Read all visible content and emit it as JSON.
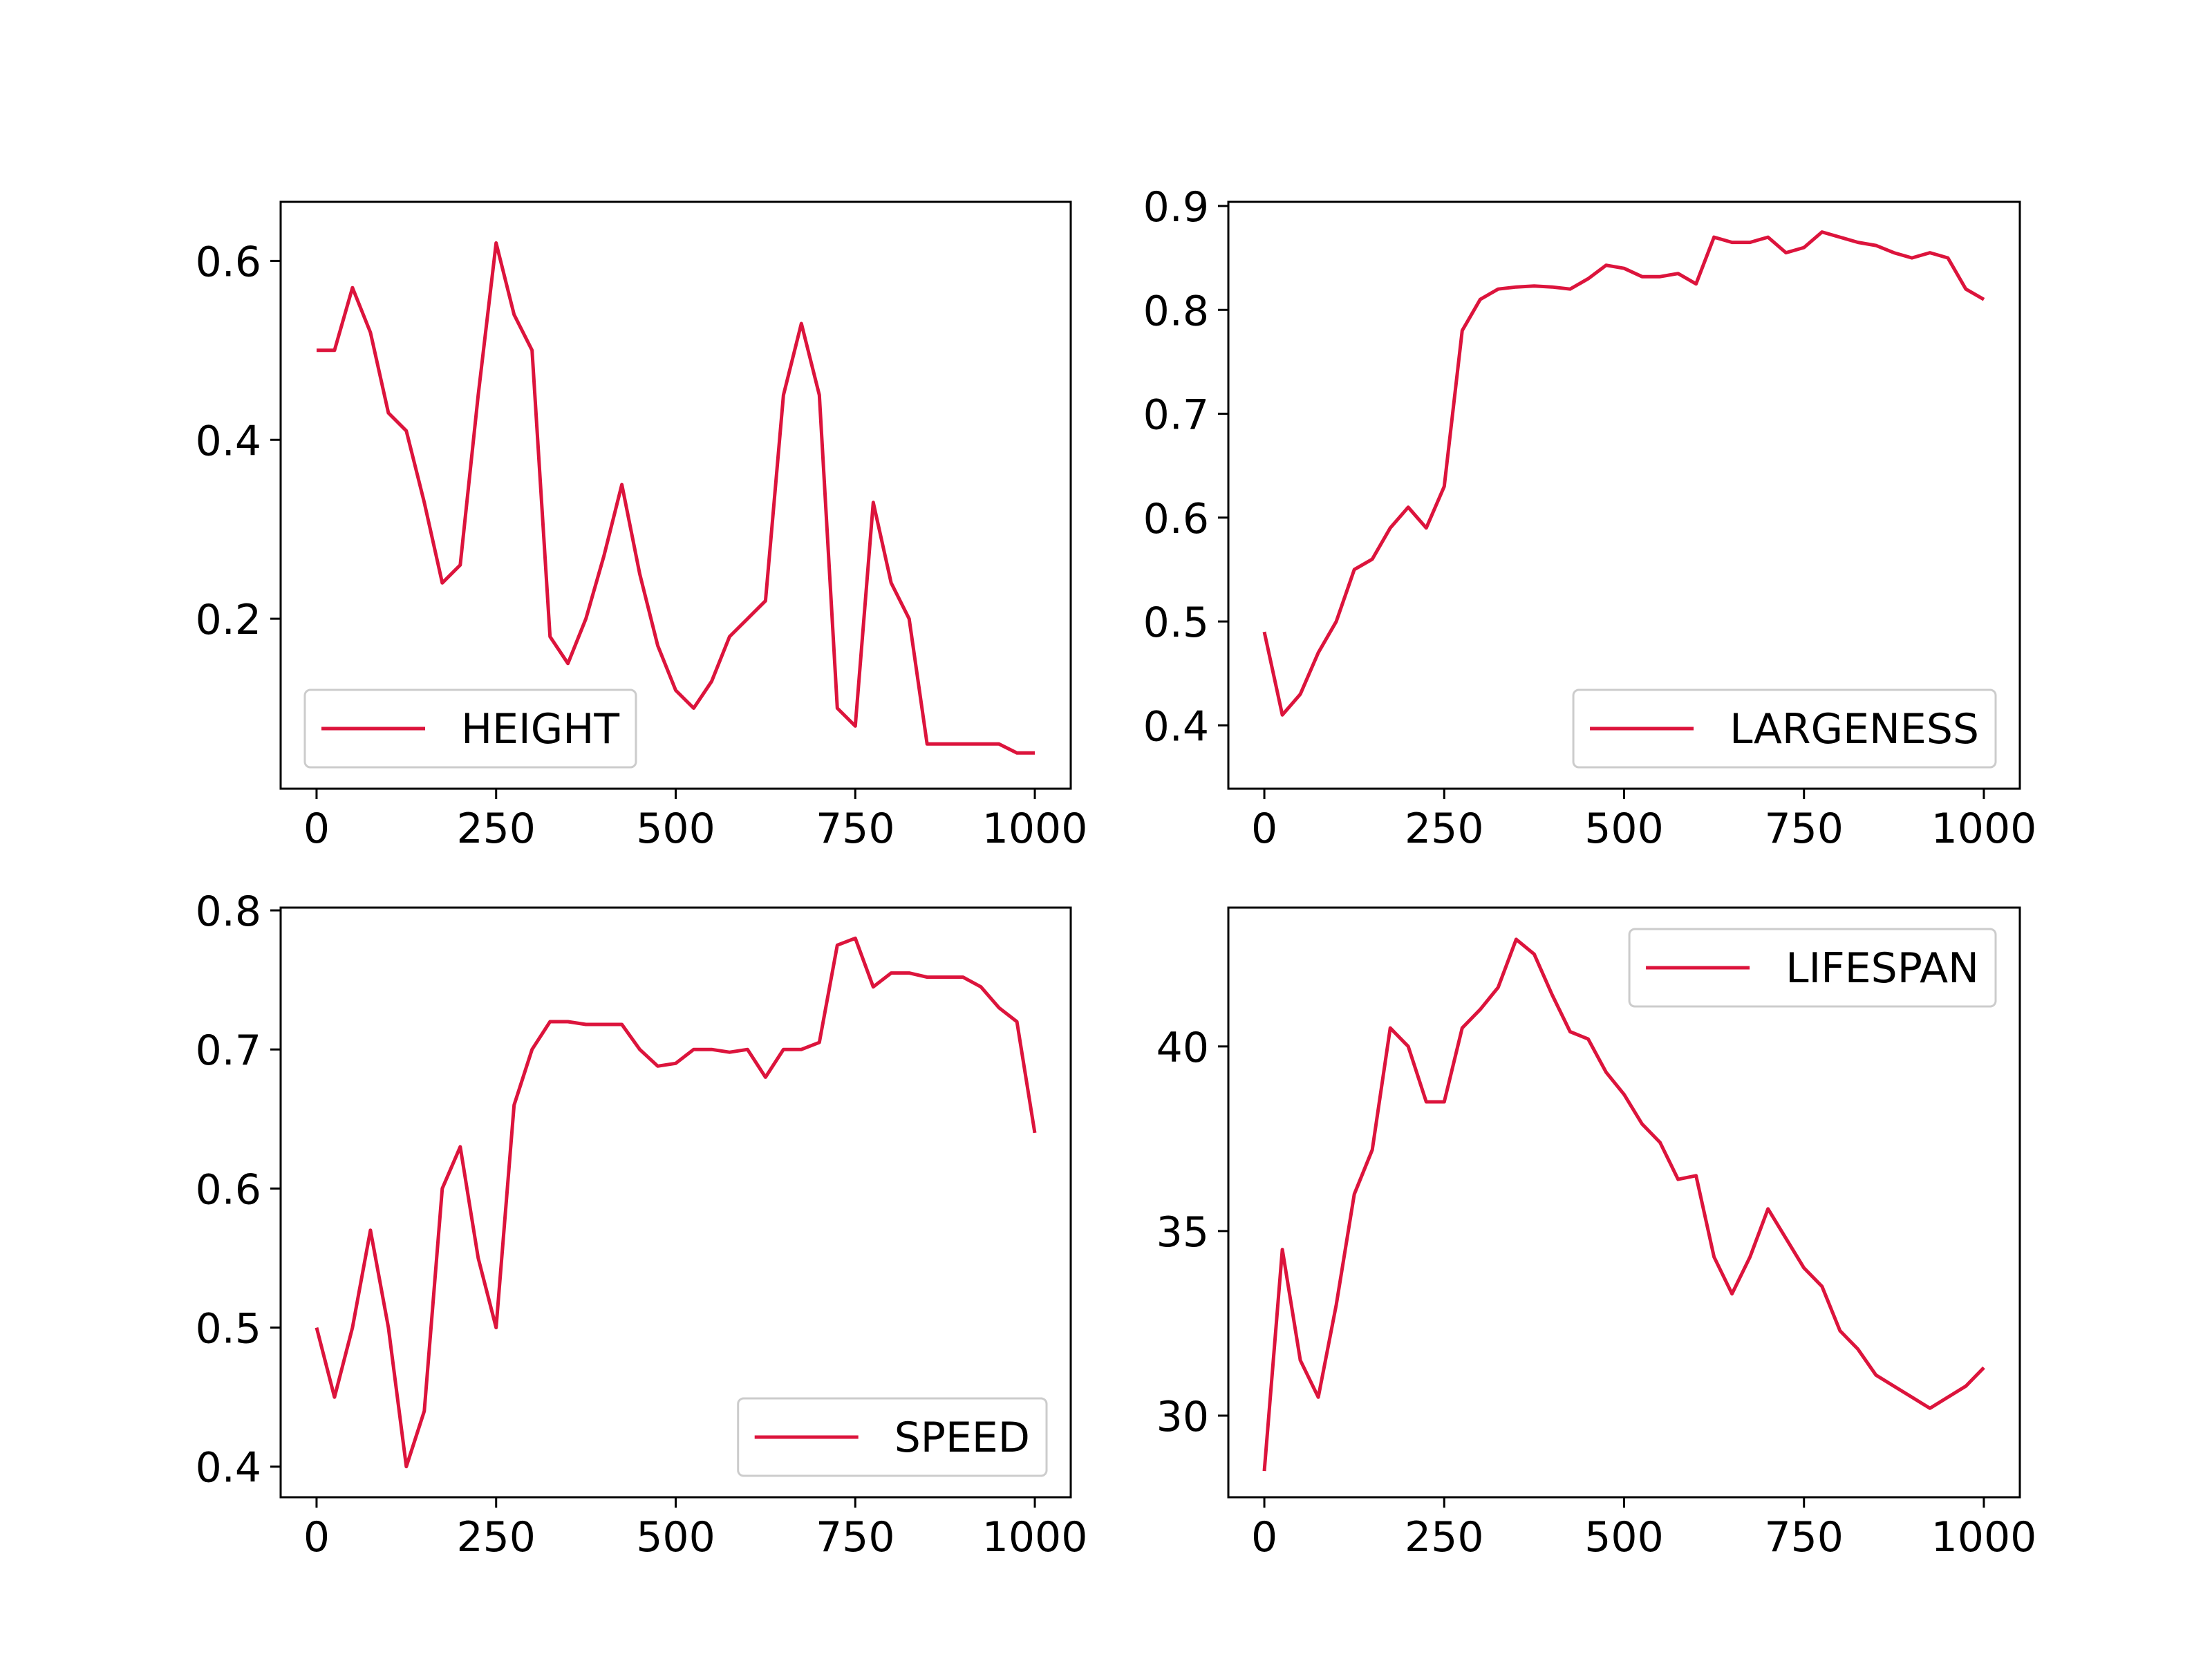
{
  "chart_data": [
    {
      "type": "line",
      "legend": "lower left",
      "grid": false,
      "x": [
        0,
        25,
        50,
        75,
        100,
        125,
        150,
        175,
        200,
        225,
        250,
        275,
        300,
        325,
        350,
        375,
        400,
        425,
        450,
        475,
        500,
        525,
        550,
        575,
        600,
        625,
        650,
        675,
        700,
        725,
        750,
        775,
        800,
        825,
        850,
        875,
        900,
        925,
        950,
        975,
        1000
      ],
      "series": [
        {
          "name": "HEIGHT",
          "color": "#dc143c",
          "values": [
            0.5,
            0.5,
            0.57,
            0.52,
            0.43,
            0.41,
            0.33,
            0.24,
            0.26,
            0.45,
            0.62,
            0.54,
            0.5,
            0.18,
            0.15,
            0.2,
            0.27,
            0.35,
            0.25,
            0.17,
            0.12,
            0.1,
            0.13,
            0.18,
            0.2,
            0.22,
            0.45,
            0.53,
            0.45,
            0.1,
            0.08,
            0.33,
            0.24,
            0.2,
            0.06,
            0.06,
            0.06,
            0.06,
            0.06,
            0.05,
            0.05
          ]
        }
      ],
      "xlim": [
        -50,
        1050
      ],
      "xticks": [
        0,
        250,
        500,
        750,
        1000
      ],
      "ylim": [
        0.01,
        0.666
      ],
      "yticks": [
        0.2,
        0.4,
        0.6
      ]
    },
    {
      "type": "line",
      "legend": "lower right",
      "grid": false,
      "x": [
        0,
        25,
        50,
        75,
        100,
        125,
        150,
        175,
        200,
        225,
        250,
        275,
        300,
        325,
        350,
        375,
        400,
        425,
        450,
        475,
        500,
        525,
        550,
        575,
        600,
        625,
        650,
        675,
        700,
        725,
        750,
        775,
        800,
        825,
        850,
        875,
        900,
        925,
        950,
        975,
        1000
      ],
      "series": [
        {
          "name": "LARGENESS",
          "color": "#dc143c",
          "values": [
            0.49,
            0.41,
            0.43,
            0.47,
            0.5,
            0.55,
            0.56,
            0.59,
            0.61,
            0.59,
            0.63,
            0.78,
            0.81,
            0.82,
            0.822,
            0.823,
            0.822,
            0.82,
            0.83,
            0.843,
            0.84,
            0.832,
            0.832,
            0.835,
            0.825,
            0.87,
            0.865,
            0.865,
            0.87,
            0.855,
            0.86,
            0.875,
            0.87,
            0.865,
            0.862,
            0.855,
            0.85,
            0.855,
            0.85,
            0.82,
            0.81
          ]
        }
      ],
      "xlim": [
        -50,
        1050
      ],
      "xticks": [
        0,
        250,
        500,
        750,
        1000
      ],
      "ylim": [
        0.339,
        0.904
      ],
      "yticks": [
        0.4,
        0.5,
        0.6,
        0.7,
        0.8,
        0.9
      ]
    },
    {
      "type": "line",
      "legend": "lower right",
      "grid": false,
      "x": [
        0,
        25,
        50,
        75,
        100,
        125,
        150,
        175,
        200,
        225,
        250,
        275,
        300,
        325,
        350,
        375,
        400,
        425,
        450,
        475,
        500,
        525,
        550,
        575,
        600,
        625,
        650,
        675,
        700,
        725,
        750,
        775,
        800,
        825,
        850,
        875,
        900,
        925,
        950,
        975,
        1000
      ],
      "series": [
        {
          "name": "SPEED",
          "color": "#dc143c",
          "values": [
            0.5,
            0.45,
            0.5,
            0.57,
            0.5,
            0.4,
            0.44,
            0.6,
            0.63,
            0.55,
            0.5,
            0.66,
            0.7,
            0.72,
            0.72,
            0.718,
            0.718,
            0.718,
            0.7,
            0.688,
            0.69,
            0.7,
            0.7,
            0.698,
            0.7,
            0.68,
            0.7,
            0.7,
            0.705,
            0.775,
            0.78,
            0.745,
            0.755,
            0.755,
            0.752,
            0.752,
            0.752,
            0.745,
            0.73,
            0.72,
            0.64
          ]
        }
      ],
      "xlim": [
        -50,
        1050
      ],
      "xticks": [
        0,
        250,
        500,
        750,
        1000
      ],
      "ylim": [
        0.378,
        0.802
      ],
      "yticks": [
        0.4,
        0.5,
        0.6,
        0.7,
        0.8
      ]
    },
    {
      "type": "line",
      "legend": "upper right",
      "grid": false,
      "x": [
        0,
        25,
        50,
        75,
        100,
        125,
        150,
        175,
        200,
        225,
        250,
        275,
        300,
        325,
        350,
        375,
        400,
        425,
        450,
        475,
        500,
        525,
        550,
        575,
        600,
        625,
        650,
        675,
        700,
        725,
        750,
        775,
        800,
        825,
        850,
        875,
        900,
        925,
        950,
        975,
        1000
      ],
      "series": [
        {
          "name": "LIFESPAN",
          "color": "#dc143c",
          "values": [
            28.5,
            34.5,
            31.5,
            30.5,
            33,
            36,
            37.2,
            40.5,
            40,
            38.5,
            38.5,
            40.5,
            41,
            41.6,
            42.9,
            42.5,
            41.4,
            40.4,
            40.2,
            39.3,
            38.7,
            37.9,
            37.4,
            36.4,
            36.5,
            34.3,
            33.3,
            34.3,
            35.6,
            34.8,
            34,
            33.5,
            32.3,
            31.8,
            31.1,
            30.8,
            30.5,
            30.2,
            30.5,
            30.8,
            31.3
          ]
        }
      ],
      "xlim": [
        -50,
        1050
      ],
      "xticks": [
        0,
        250,
        500,
        750,
        1000
      ],
      "ylim": [
        27.79,
        43.76
      ],
      "yticks": [
        30,
        35,
        40
      ]
    }
  ]
}
